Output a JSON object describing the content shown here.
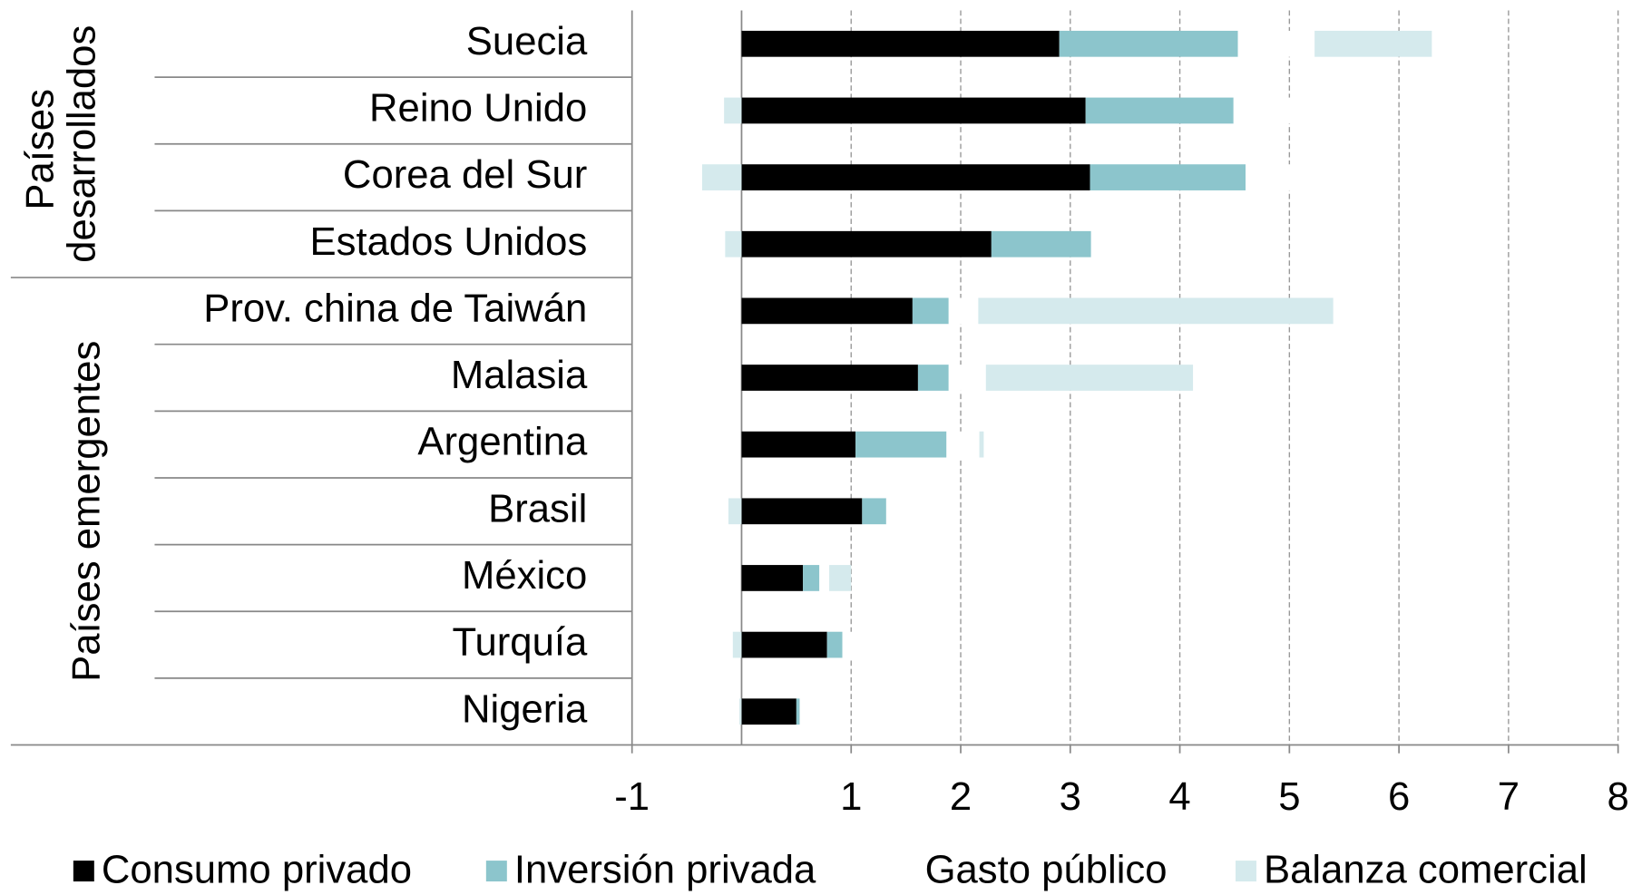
{
  "chart_data": {
    "type": "stacked-bar-horizontal",
    "categories": [
      "Suecia",
      "Reino Unido",
      "Corea del Sur",
      "Estados Unidos",
      "Prov. china de Taiwán",
      "Malasia",
      "Argentina",
      "Brasil",
      "México",
      "Turquía",
      "Nigeria"
    ],
    "group_labels": [
      "Países desarrollados",
      "Países emergentes"
    ],
    "series": [
      {
        "name": "Consumo privado",
        "color": "#000000",
        "values": [
          2.9,
          3.14,
          3.18,
          2.28,
          1.56,
          1.61,
          1.04,
          1.1,
          0.56,
          0.78,
          0.5
        ]
      },
      {
        "name": "Inversión privada",
        "color": "#8cc5cc",
        "values": [
          1.63,
          1.35,
          1.42,
          0.91,
          0.33,
          0.28,
          0.83,
          0.22,
          0.15,
          0.14,
          0.03
        ]
      },
      {
        "name": "Gasto público",
        "color": "#ffffff",
        "values": [
          0.7,
          0.8,
          0.8,
          0.6,
          0.27,
          0.34,
          0.3,
          0.5,
          0.09,
          0.4,
          0.1
        ]
      },
      {
        "name": "Balanza comercial",
        "color": "#d5eaed",
        "values": [
          1.07,
          -0.16,
          -0.36,
          -0.15,
          3.24,
          1.89,
          0.04,
          -0.12,
          0.2,
          -0.08,
          -0.02
        ]
      }
    ],
    "xlim": [
      -1,
      8
    ],
    "xticks": [
      -1,
      1,
      2,
      3,
      4,
      5,
      6,
      7,
      8
    ],
    "grid": true
  }
}
